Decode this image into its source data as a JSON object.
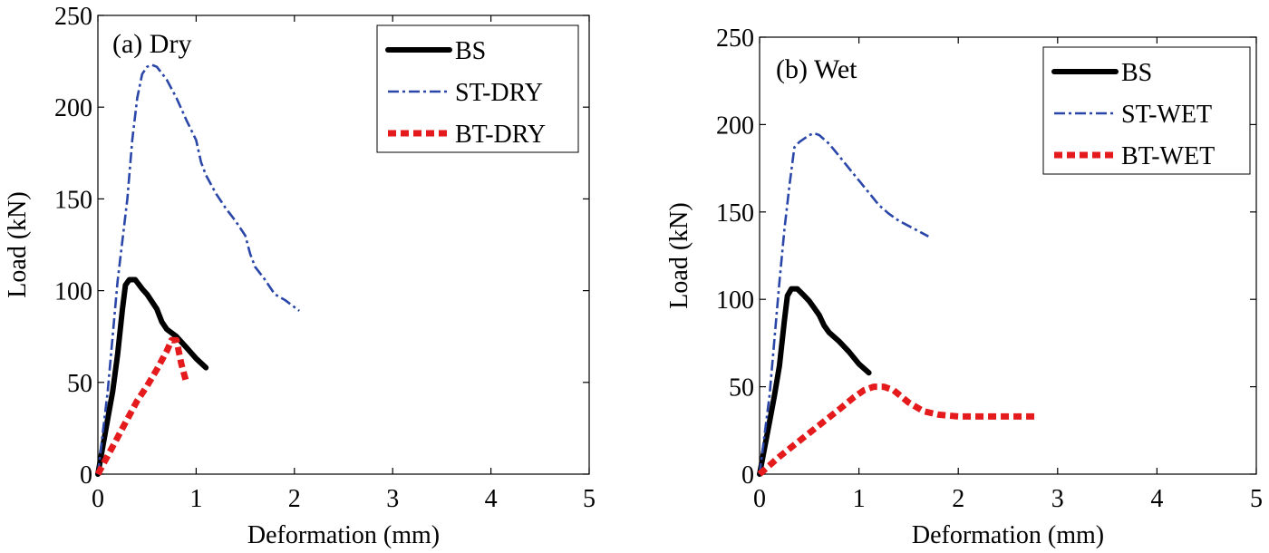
{
  "chart_data": [
    {
      "type": "line",
      "title": "(a) Dry",
      "xlabel": "Deformation (mm)",
      "ylabel": "Load (kN)",
      "xlim": [
        0,
        5
      ],
      "ylim": [
        0,
        250
      ],
      "xticks": [
        0,
        1,
        2,
        3,
        4,
        5
      ],
      "yticks": [
        0,
        50,
        100,
        150,
        200,
        250
      ],
      "grid": false,
      "legend_position": "top-right",
      "series": [
        {
          "name": "BS",
          "color": "#000000",
          "style": "solid",
          "x": [
            0,
            0.05,
            0.1,
            0.15,
            0.2,
            0.25,
            0.28,
            0.32,
            0.38,
            0.45,
            0.5,
            0.55,
            0.6,
            0.65,
            0.7,
            0.8,
            0.9,
            1.0,
            1.1
          ],
          "y": [
            0,
            15,
            30,
            45,
            65,
            90,
            103,
            106,
            106,
            101,
            98,
            94,
            90,
            83,
            79,
            75,
            69,
            63,
            58
          ]
        },
        {
          "name": "ST-DRY",
          "color": "#2a46a8",
          "style": "dashdot",
          "x": [
            0,
            0.1,
            0.2,
            0.3,
            0.35,
            0.4,
            0.45,
            0.5,
            0.55,
            0.6,
            0.7,
            0.75,
            0.8,
            0.9,
            1.0,
            1.05,
            1.1,
            1.2,
            1.3,
            1.4,
            1.5,
            1.55,
            1.6,
            1.7,
            1.8,
            1.9,
            2.0,
            2.05
          ],
          "y": [
            0,
            45,
            105,
            150,
            182,
            205,
            218,
            222,
            223,
            222,
            215,
            210,
            205,
            193,
            182,
            170,
            163,
            153,
            145,
            138,
            130,
            120,
            113,
            106,
            98,
            95,
            91,
            89
          ]
        },
        {
          "name": "BT-DRY",
          "color": "#e41a1c",
          "style": "dotted",
          "x": [
            0,
            0.1,
            0.2,
            0.3,
            0.4,
            0.5,
            0.6,
            0.7,
            0.75,
            0.8,
            0.85,
            0.9
          ],
          "y": [
            0,
            10,
            20,
            30,
            40,
            48,
            57,
            67,
            73,
            73,
            60,
            50
          ]
        }
      ]
    },
    {
      "type": "line",
      "title": "(b) Wet",
      "xlabel": "Deformation (mm)",
      "ylabel": "Load (kN)",
      "xlim": [
        0,
        5
      ],
      "ylim": [
        0,
        250
      ],
      "xticks": [
        0,
        1,
        2,
        3,
        4,
        5
      ],
      "yticks": [
        0,
        50,
        100,
        150,
        200,
        250
      ],
      "grid": false,
      "legend_position": "top-right",
      "series": [
        {
          "name": "BS",
          "color": "#000000",
          "style": "solid",
          "x": [
            0,
            0.05,
            0.1,
            0.15,
            0.2,
            0.25,
            0.28,
            0.32,
            0.38,
            0.45,
            0.5,
            0.55,
            0.6,
            0.65,
            0.7,
            0.8,
            0.9,
            1.0,
            1.1
          ],
          "y": [
            0,
            15,
            30,
            45,
            62,
            88,
            102,
            106,
            106,
            102,
            99,
            95,
            91,
            85,
            81,
            76,
            70,
            63,
            58
          ]
        },
        {
          "name": "ST-WET",
          "color": "#2a46a8",
          "style": "dashdot",
          "x": [
            0,
            0.1,
            0.2,
            0.25,
            0.3,
            0.35,
            0.4,
            0.5,
            0.55,
            0.6,
            0.7,
            0.8,
            0.9,
            1.0,
            1.1,
            1.2,
            1.3,
            1.4,
            1.5,
            1.6,
            1.7
          ],
          "y": [
            0,
            45,
            110,
            140,
            165,
            187,
            190,
            194,
            195,
            194,
            189,
            182,
            175,
            168,
            161,
            154,
            149,
            145,
            142,
            139,
            136
          ]
        },
        {
          "name": "BT-WET",
          "color": "#e41a1c",
          "style": "dotted",
          "x": [
            0,
            0.2,
            0.4,
            0.6,
            0.8,
            0.95,
            1.05,
            1.15,
            1.25,
            1.35,
            1.5,
            1.65,
            1.8,
            2.0,
            2.2,
            2.5,
            2.8
          ],
          "y": [
            0,
            10,
            19,
            28,
            37,
            44,
            48,
            50,
            50,
            48,
            41,
            36,
            34,
            33,
            33,
            33,
            33
          ]
        }
      ]
    }
  ]
}
